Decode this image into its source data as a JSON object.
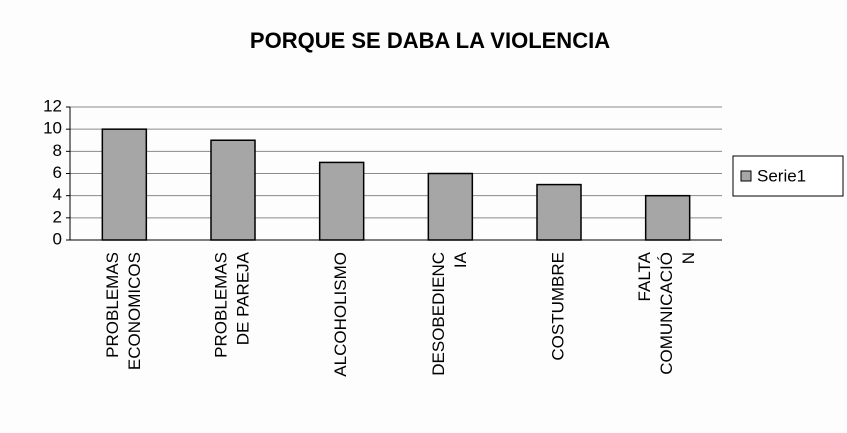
{
  "chart_data": {
    "type": "bar",
    "title": "PORQUE SE DABA LA VIOLENCIA",
    "categories": [
      [
        "PROBLEMAS",
        "ECONOMICOS"
      ],
      [
        "PROBLEMAS",
        "DE PAREJA"
      ],
      [
        "ALCOHOLISMO"
      ],
      [
        "DESOBEDIENC",
        "IA"
      ],
      [
        "COSTUMBRE"
      ],
      [
        "FALTA",
        "COMUNICACIÓ",
        "N"
      ]
    ],
    "series": [
      {
        "name": "Serie1",
        "color": "#a6a6a6",
        "values": [
          10,
          9,
          7,
          6,
          5,
          4
        ]
      }
    ],
    "ylim": [
      0,
      12
    ],
    "yticks": [
      0,
      2,
      4,
      6,
      8,
      10,
      12
    ],
    "grid": true,
    "legend": "right"
  }
}
